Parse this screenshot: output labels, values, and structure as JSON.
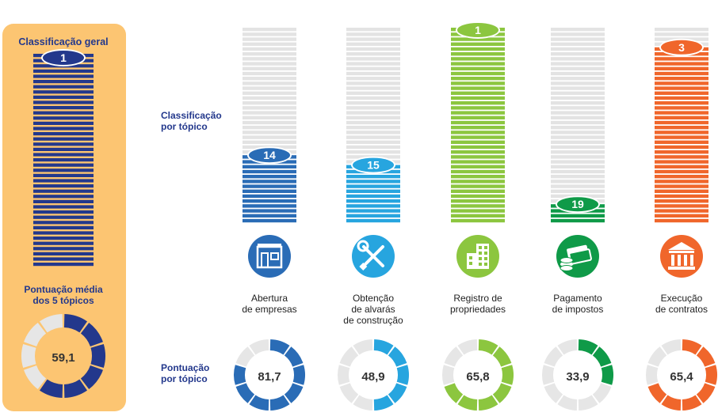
{
  "overall": {
    "title": "Classificação geral",
    "rank": "1",
    "avg_title_line1": "Pontuação média",
    "avg_title_line2": "dos 5 tópicos",
    "avg_score": 59.1,
    "avg_score_label": "59,1"
  },
  "labels": {
    "rank_by_topic_line1": "Classificação",
    "rank_by_topic_line2": "por tópico",
    "score_by_topic_line1": "Pontuação",
    "score_by_topic_line2": "por tópico"
  },
  "colors": {
    "panel_bg": "#fcc572",
    "panel_stripe": "#23388c",
    "empty_stripe": "#e3e3e3",
    "ring_empty": "#e6e6e6",
    "label_blue": "#23388c"
  },
  "chart_data": {
    "type": "bar",
    "rank_scale_max": 20,
    "score_scale_max": 100,
    "categories": [
      {
        "key": "abertura",
        "label_lines": [
          "Abertura",
          "de empresas"
        ],
        "rank": 14,
        "rank_label": "14",
        "score": 81.7,
        "score_label": "81,7",
        "color": "#2a6cb6",
        "icon": "storefront-icon"
      },
      {
        "key": "alvaras",
        "label_lines": [
          "Obtenção",
          "de alvarás",
          "de construção"
        ],
        "rank": 15,
        "rank_label": "15",
        "score": 48.9,
        "score_label": "48,9",
        "color": "#27a5df",
        "icon": "tools-icon"
      },
      {
        "key": "registro",
        "label_lines": [
          "Registro de",
          "propriedades"
        ],
        "rank": 1,
        "rank_label": "1",
        "score": 65.8,
        "score_label": "65,8",
        "color": "#8cc63f",
        "icon": "buildings-icon"
      },
      {
        "key": "impostos",
        "label_lines": [
          "Pagamento",
          "de impostos"
        ],
        "rank": 19,
        "rank_label": "19",
        "score": 33.9,
        "score_label": "33,9",
        "color": "#0f9a48",
        "icon": "money-icon"
      },
      {
        "key": "contratos",
        "label_lines": [
          "Execução",
          "de contratos"
        ],
        "rank": 3,
        "rank_label": "3",
        "score": 65.4,
        "score_label": "65,4",
        "color": "#f0662b",
        "icon": "courthouse-icon"
      }
    ]
  }
}
